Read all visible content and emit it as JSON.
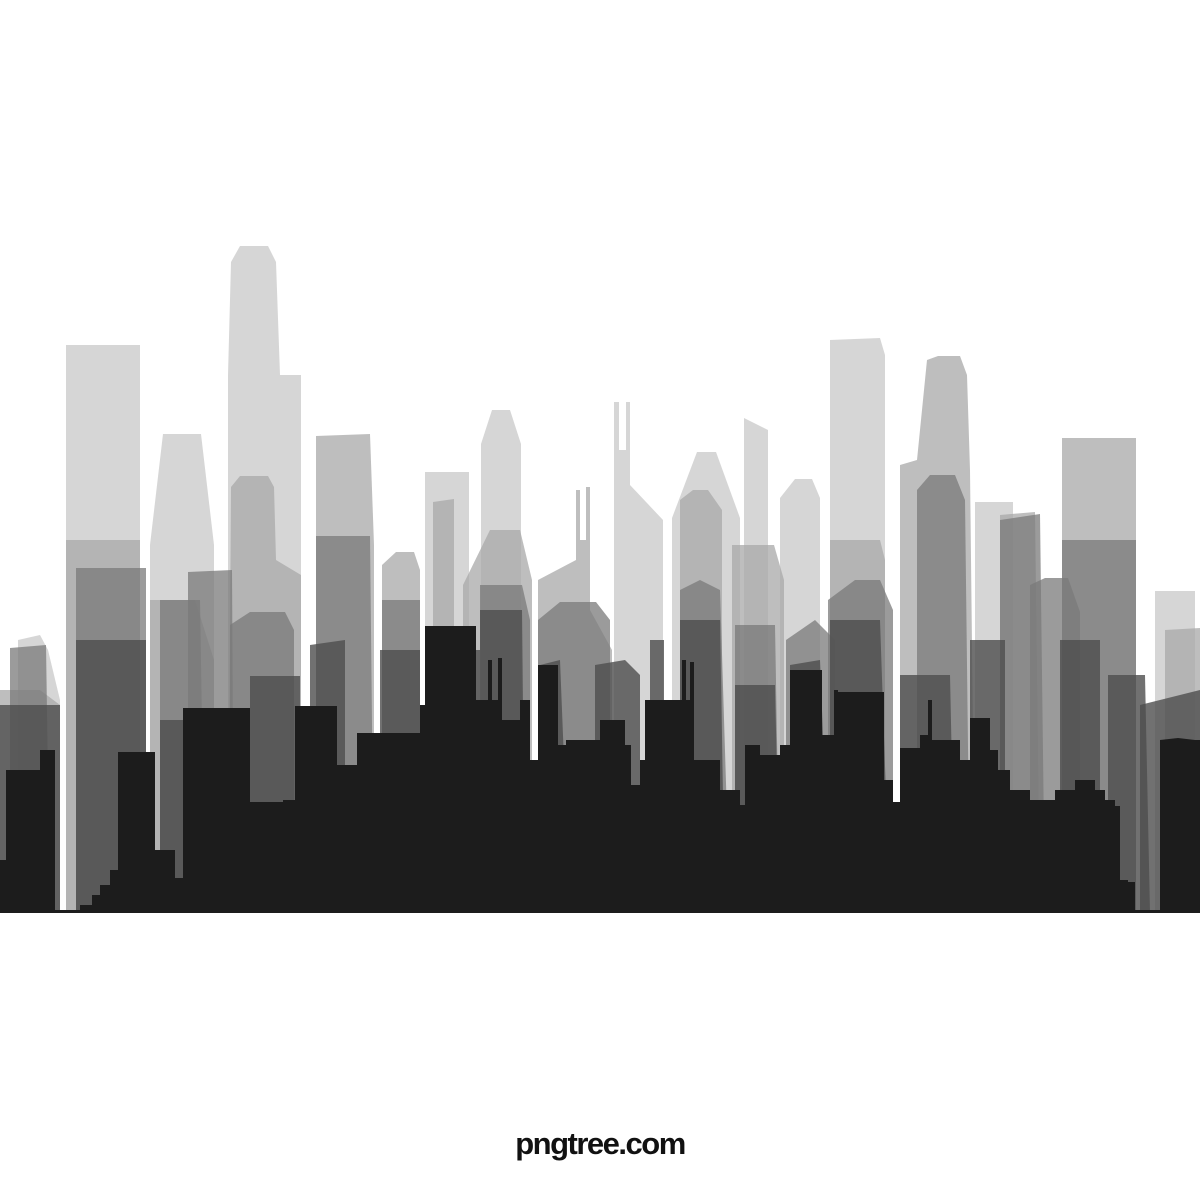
{
  "scene": {
    "subject": "city-skyline-silhouette",
    "style": "layered grayscale silhouettes",
    "palette": {
      "background": "#ffffff",
      "layer_lightest": "#cfcfcf",
      "layer_light": "#a6a6a6",
      "layer_mid": "#7a7a7a",
      "layer_dark": "#4d4d4d",
      "layer_darkest": "#1c1c1c"
    }
  },
  "watermark": {
    "text": "pngtree.com"
  }
}
